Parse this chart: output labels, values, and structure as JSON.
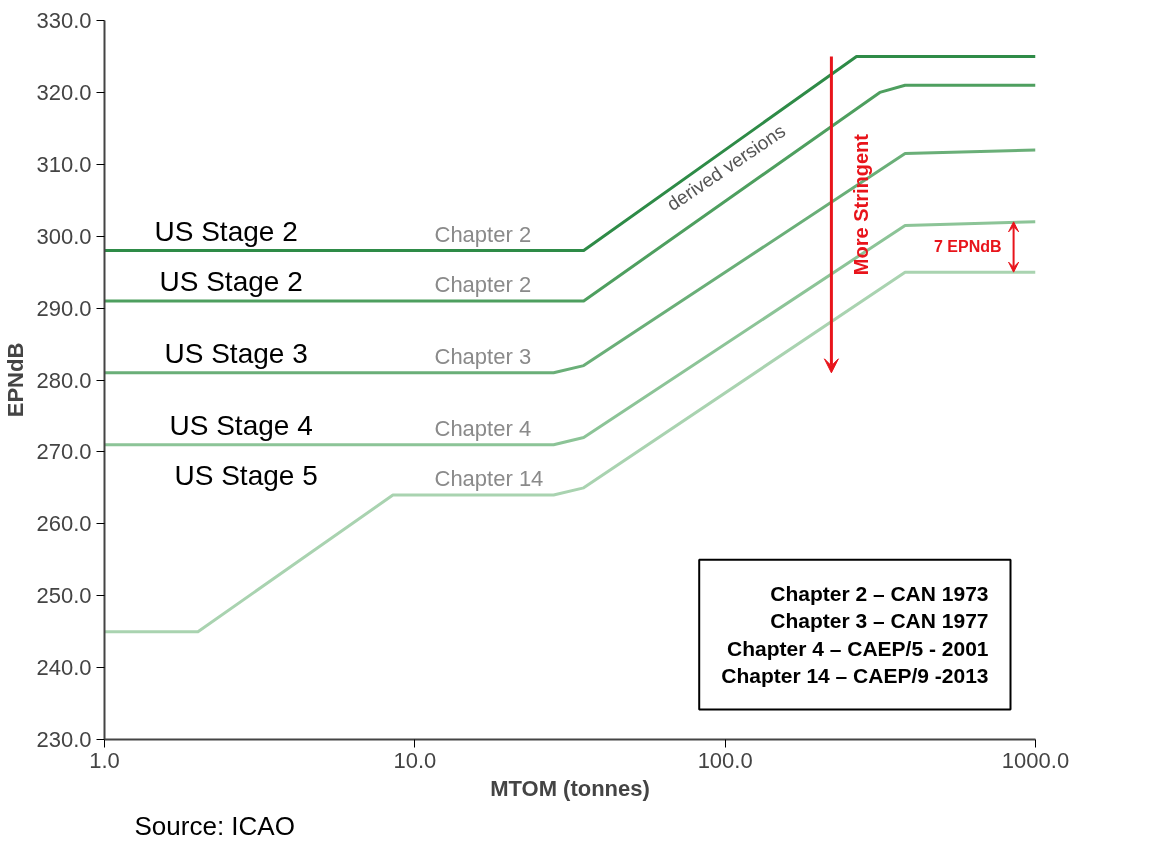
{
  "chart_data": {
    "type": "line",
    "xlabel": "MTOM (tonnes)",
    "ylabel": "EPNdB",
    "log": "x",
    "grid": false,
    "marker": "none",
    "line_style": "solid",
    "xlim": [
      1,
      1000
    ],
    "xticks": [
      {
        "value": 1,
        "label": "1.0"
      },
      {
        "value": 10,
        "label": "10.0"
      },
      {
        "value": 100,
        "label": "100.0"
      },
      {
        "value": 1000,
        "label": "1000.0"
      }
    ],
    "ylim": [
      230,
      330
    ],
    "yticks": [
      {
        "value": 230,
        "label": "230.0"
      },
      {
        "value": 240,
        "label": "240.0"
      },
      {
        "value": 250,
        "label": "250.0"
      },
      {
        "value": 260,
        "label": "260.0"
      },
      {
        "value": 270,
        "label": "270.0"
      },
      {
        "value": 280,
        "label": "280.0"
      },
      {
        "value": 290,
        "label": "290.0"
      },
      {
        "value": 300,
        "label": "300.0"
      },
      {
        "value": 310,
        "label": "310.0"
      },
      {
        "value": 320,
        "label": "320.0"
      },
      {
        "value": 330,
        "label": "330.0"
      }
    ],
    "series": [
      {
        "color": "#2e8b47",
        "x": [
          1,
          35,
          265,
          1000
        ],
        "values": [
          298,
          298,
          325,
          325
        ]
      },
      {
        "color": "#4e9f5f",
        "x": [
          1,
          35,
          315,
          380,
          1000
        ],
        "values": [
          291,
          291,
          320,
          321,
          321
        ]
      },
      {
        "color": "#6aaf78",
        "x": [
          1,
          28,
          35,
          380,
          1000
        ],
        "values": [
          281,
          281,
          282,
          311.5,
          312
        ]
      },
      {
        "color": "#8cc497",
        "x": [
          1,
          28,
          35,
          380,
          1000
        ],
        "values": [
          271,
          271,
          272,
          301.5,
          302
        ]
      },
      {
        "color": "#a9d3b0",
        "x": [
          1,
          2,
          8.5,
          28,
          35,
          380,
          1000
        ],
        "values": [
          245,
          245,
          264,
          264,
          265,
          295,
          295
        ]
      }
    ],
    "annotations": [
      "derived versions",
      "More Stringent",
      "7 EPNdB",
      "US Stage 2",
      "Chapter 2",
      "US Stage 2",
      "Chapter 2",
      "US Stage 3",
      "Chapter 3",
      "US Stage 4",
      "Chapter 4",
      "US Stage 5",
      "Chapter 14",
      "Chapter 2 – CAN 1973",
      "Chapter 3 – CAN 1977",
      "Chapter 4 – CAEP/5 - 2001",
      "Chapter 14 – CAEP/9 -2013",
      "Source: ICAO"
    ]
  }
}
